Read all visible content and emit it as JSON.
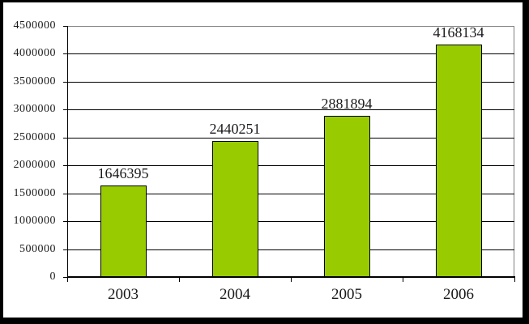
{
  "chart_data": {
    "type": "bar",
    "title": "",
    "xlabel": "",
    "ylabel": "",
    "categories": [
      "2003",
      "2004",
      "2005",
      "2006"
    ],
    "values": [
      1646395,
      2440251,
      2881894,
      4168134
    ],
    "value_labels": [
      "1646395",
      "2440251",
      "2881894",
      "4168134"
    ],
    "ylim": [
      0,
      4500000
    ],
    "ytick_step": 500000,
    "ytick_labels": [
      "0",
      "500000",
      "1000000",
      "1500000",
      "2000000",
      "2500000",
      "3000000",
      "3500000",
      "4000000",
      "4500000"
    ],
    "grid": true,
    "legend": false,
    "colors": {
      "bar_fill": "#99CC00",
      "bar_border": "#000000",
      "gridline": "#000000",
      "plot_border": "#808080",
      "axis": "#000000",
      "text": "#1a1a1a",
      "background": "#FFFFFF",
      "outer_frame": "#000000"
    }
  }
}
